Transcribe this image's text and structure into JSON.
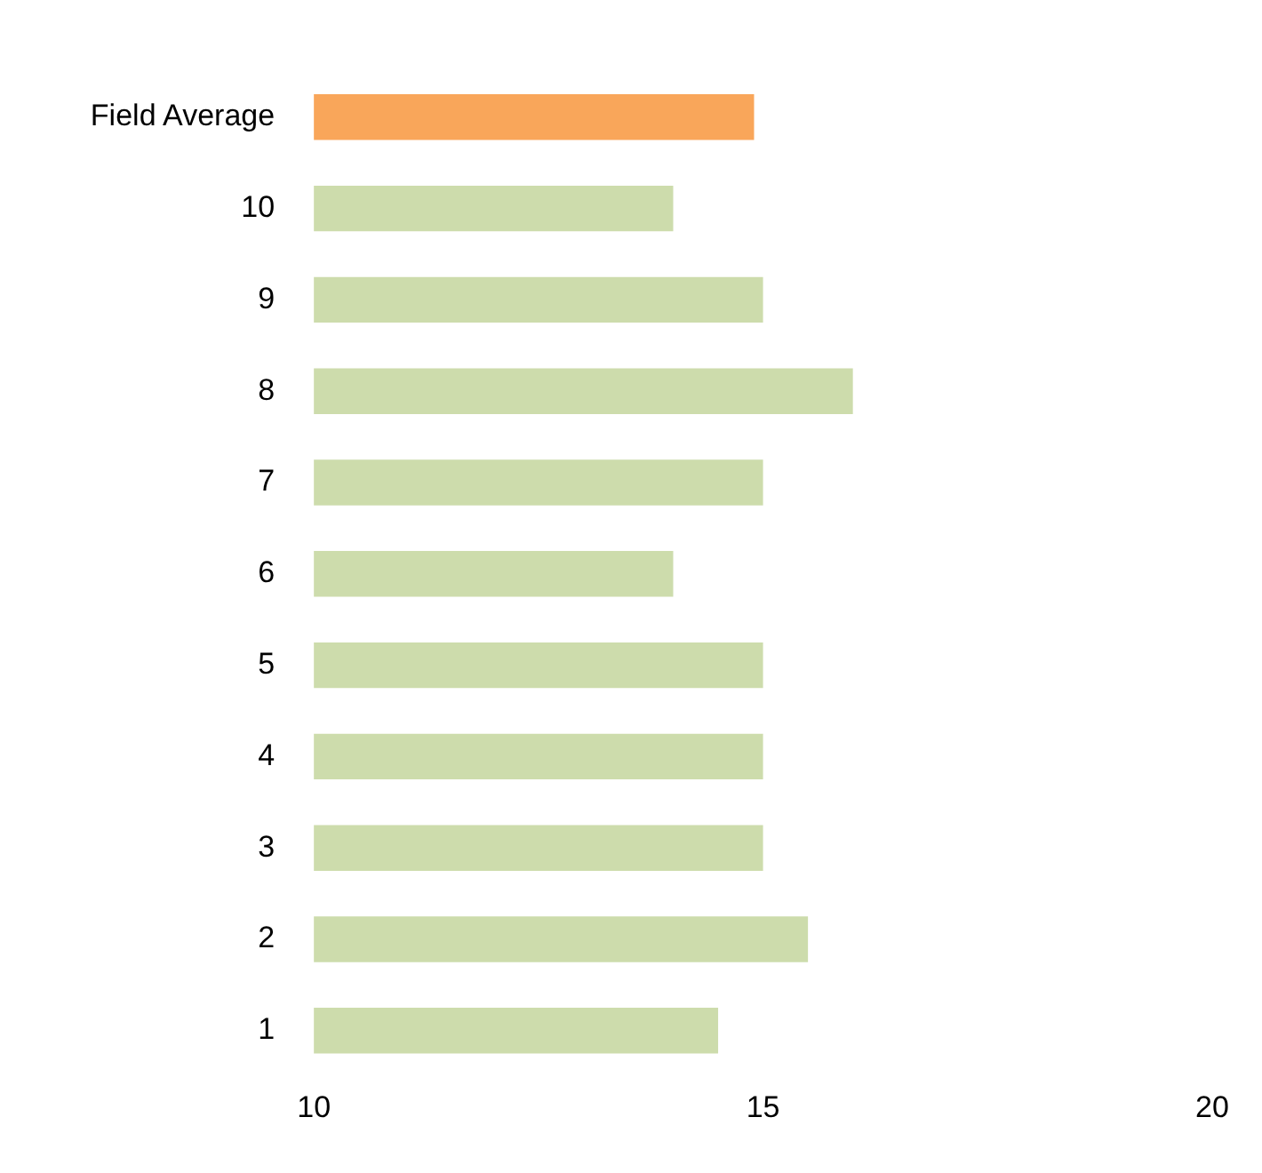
{
  "chart_data": {
    "type": "bar",
    "orientation": "horizontal",
    "categories": [
      "Field Average",
      "10",
      "9",
      "8",
      "7",
      "6",
      "5",
      "4",
      "3",
      "2",
      "1"
    ],
    "values": [
      14.9,
      14,
      15,
      16,
      15,
      14,
      15,
      15,
      15,
      15.5,
      14.5
    ],
    "colors": [
      "#f9a65a",
      "#cddcac",
      "#cddcac",
      "#cddcac",
      "#cddcac",
      "#cddcac",
      "#cddcac",
      "#cddcac",
      "#cddcac",
      "#cddcac",
      "#cddcac"
    ],
    "xlim": [
      10,
      20
    ],
    "xticks": [
      10,
      15,
      20
    ],
    "grid": false,
    "legend": false
  }
}
